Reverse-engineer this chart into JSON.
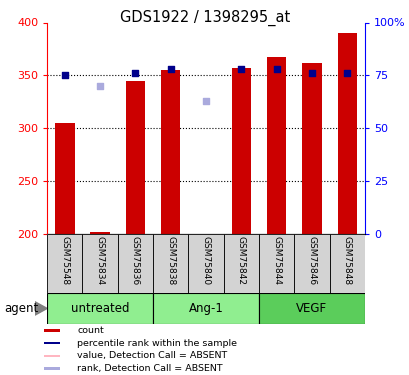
{
  "title": "GDS1922 / 1398295_at",
  "samples": [
    "GSM75548",
    "GSM75834",
    "GSM75836",
    "GSM75838",
    "GSM75840",
    "GSM75842",
    "GSM75844",
    "GSM75846",
    "GSM75848"
  ],
  "count_values": [
    305,
    202,
    345,
    355,
    200,
    357,
    367,
    362,
    390
  ],
  "count_absent": [
    false,
    false,
    false,
    false,
    true,
    false,
    false,
    false,
    false
  ],
  "rank_values": [
    75,
    70,
    76,
    78,
    63,
    78,
    78,
    76,
    76
  ],
  "rank_absent": [
    false,
    true,
    false,
    false,
    true,
    false,
    false,
    false,
    false
  ],
  "ylim_left": [
    200,
    400
  ],
  "ylim_right": [
    0,
    100
  ],
  "yticks_left": [
    200,
    250,
    300,
    350,
    400
  ],
  "yticks_right": [
    0,
    25,
    50,
    75,
    100
  ],
  "ytick_labels_right": [
    "0",
    "25",
    "50",
    "75",
    "100%"
  ],
  "groups": [
    {
      "label": "untreated",
      "indices": [
        0,
        1,
        2
      ],
      "color": "#90EE90"
    },
    {
      "label": "Ang-1",
      "indices": [
        3,
        4,
        5
      ],
      "color": "#90EE90"
    },
    {
      "label": "VEGF",
      "indices": [
        6,
        7,
        8
      ],
      "color": "#5BCD5B"
    }
  ],
  "bar_width": 0.55,
  "count_color": "#CC0000",
  "count_absent_color": "#FFB6C1",
  "rank_color": "#00008B",
  "rank_absent_color": "#AAAADD",
  "rank_square_size": 25,
  "sample_bg_color": "#D3D3D3",
  "agent_label": "agent",
  "legend_items": [
    {
      "label": "count",
      "color": "#CC0000"
    },
    {
      "label": "percentile rank within the sample",
      "color": "#00008B"
    },
    {
      "label": "value, Detection Call = ABSENT",
      "color": "#FFB6C1"
    },
    {
      "label": "rank, Detection Call = ABSENT",
      "color": "#AAAADD"
    }
  ]
}
